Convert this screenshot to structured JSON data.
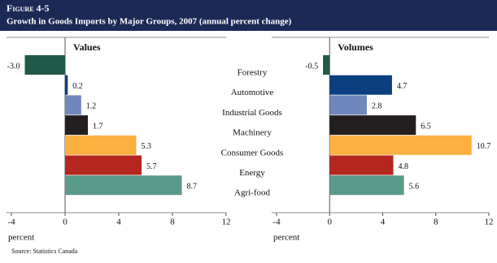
{
  "header": {
    "figure": "Figure 4-5",
    "title": "Growth in Goods Imports by Major Groups, 2007 (annual percent change)"
  },
  "source": "Source: Statistics Canada",
  "chart_data": [
    {
      "type": "bar",
      "orientation": "horizontal",
      "title": "Values",
      "categories": [
        "Forestry",
        "Automotive",
        "Industrial Goods",
        "Machinery",
        "Consumer Goods",
        "Energy",
        "Agri-food"
      ],
      "values": [
        -3.0,
        0.2,
        1.2,
        1.7,
        5.3,
        5.7,
        8.7
      ],
      "value_labels": [
        "-3.0",
        "0.2",
        "1.2",
        "1.7",
        "5.3",
        "5.7",
        "8.7"
      ],
      "colors": [
        "#1f5a48",
        "#0b3f7f",
        "#6f87bd",
        "#231f20",
        "#fbb040",
        "#b5261e",
        "#5a9a8a"
      ],
      "xlim": [
        -4,
        12
      ],
      "xticks": [
        -4,
        0,
        4,
        8,
        12
      ],
      "xlabel": "percent"
    },
    {
      "type": "bar",
      "orientation": "horizontal",
      "title": "Volumes",
      "values": [
        -0.5,
        4.7,
        2.8,
        6.5,
        10.7,
        4.8,
        5.6
      ],
      "value_labels": [
        "-0.5",
        "4.7",
        "2.8",
        "6.5",
        "10.7",
        "4.8",
        "5.6"
      ],
      "colors": [
        "#1f5a48",
        "#0b3f7f",
        "#6f87bd",
        "#231f20",
        "#fbb040",
        "#b5261e",
        "#5a9a8a"
      ],
      "xlim": [
        -4,
        12
      ],
      "xticks": [
        -4,
        0,
        4,
        8,
        12
      ],
      "xlabel": "percent"
    }
  ]
}
